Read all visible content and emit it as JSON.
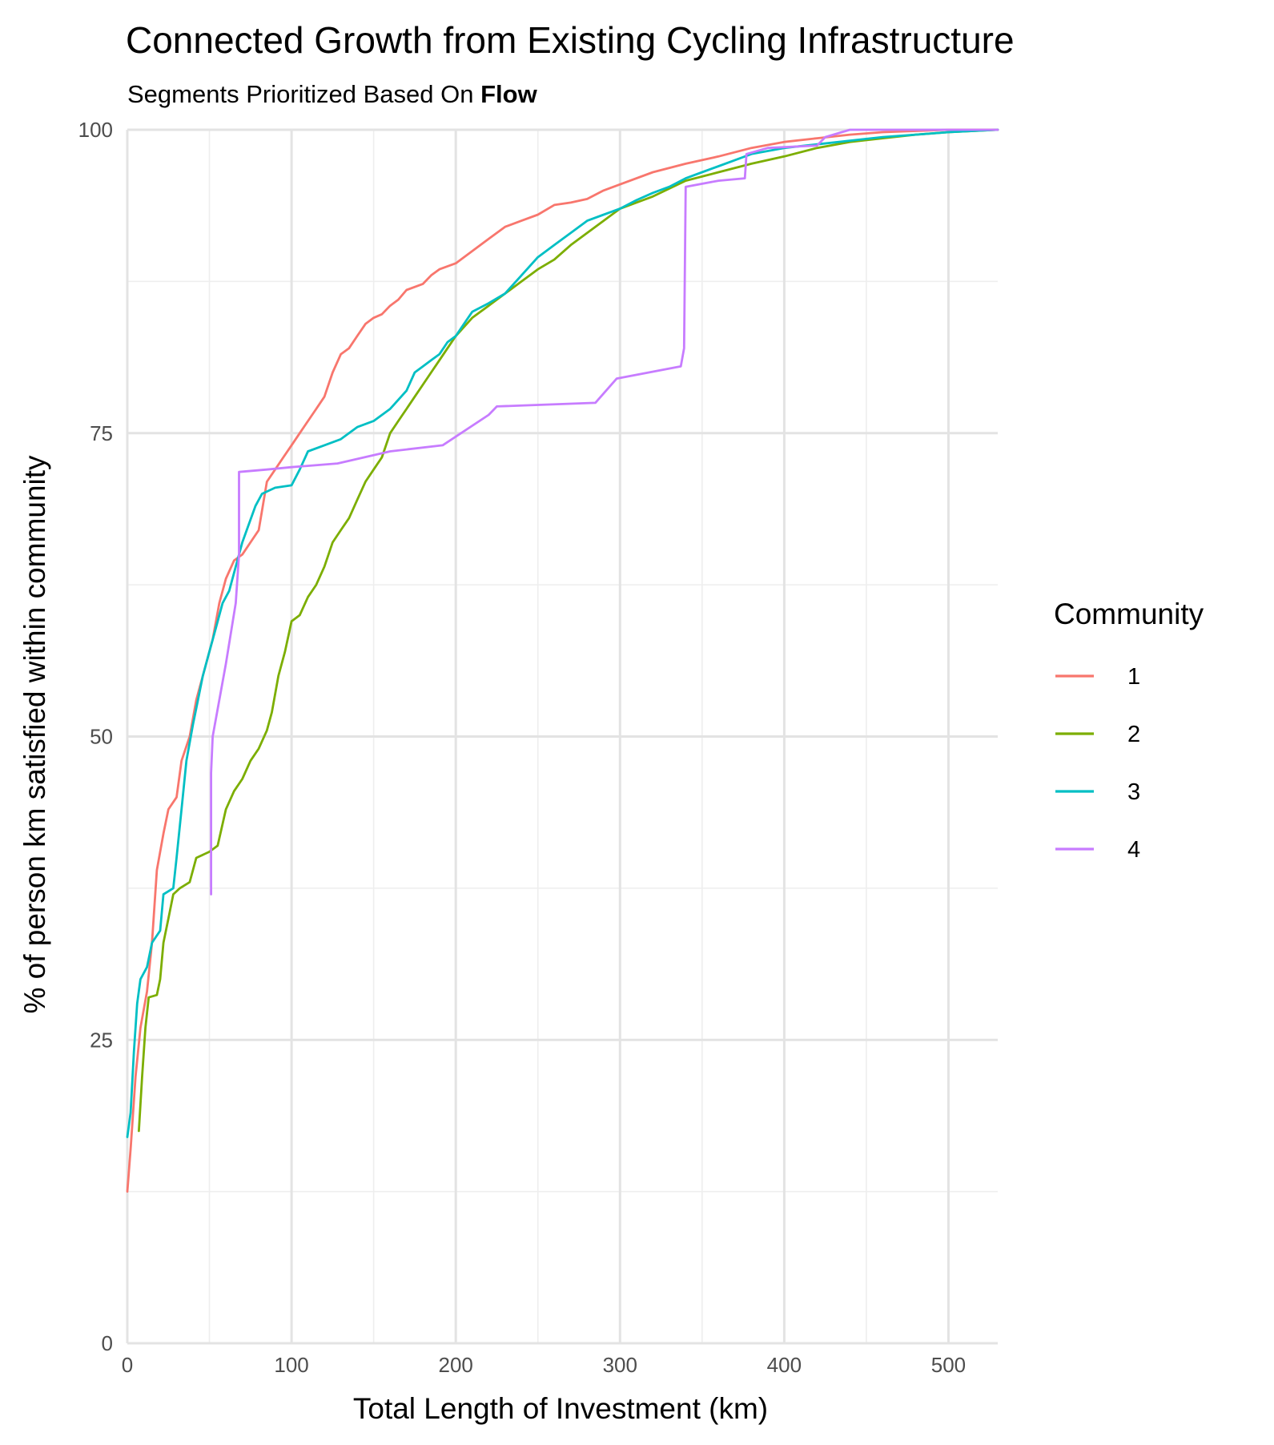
{
  "chart_data": {
    "type": "line",
    "title": "Connected Growth from Existing Cycling Infrastructure",
    "subtitle_prefix": "Segments Prioritized Based On ",
    "subtitle_bold": "Flow",
    "xlabel": "Total Length of Investment (km)",
    "ylabel": "% of person km satisfied within community",
    "xlim": [
      0,
      530
    ],
    "ylim": [
      0,
      100
    ],
    "x_ticks": [
      0,
      100,
      200,
      300,
      400,
      500
    ],
    "y_ticks": [
      0,
      25,
      50,
      75,
      100
    ],
    "x_tick_labels": [
      "0",
      "100",
      "200",
      "300",
      "400",
      "500"
    ],
    "y_tick_labels": [
      "0",
      "25",
      "50",
      "75",
      "100"
    ],
    "grid": true,
    "legend": {
      "title": "Community",
      "position": "right"
    },
    "series": [
      {
        "name": "1",
        "color": "#F8766D",
        "points": [
          [
            0,
            12.5
          ],
          [
            2,
            16
          ],
          [
            5,
            22
          ],
          [
            8,
            26
          ],
          [
            12,
            29
          ],
          [
            15,
            33
          ],
          [
            18,
            39
          ],
          [
            22,
            42
          ],
          [
            25,
            44
          ],
          [
            30,
            45
          ],
          [
            33,
            48
          ],
          [
            38,
            50
          ],
          [
            42,
            53
          ],
          [
            48,
            56
          ],
          [
            52,
            58
          ],
          [
            56,
            61
          ],
          [
            60,
            63
          ],
          [
            65,
            64.5
          ],
          [
            70,
            65
          ],
          [
            75,
            66
          ],
          [
            80,
            67
          ],
          [
            85,
            71
          ],
          [
            90,
            72
          ],
          [
            95,
            73
          ],
          [
            100,
            74
          ],
          [
            105,
            75
          ],
          [
            110,
            76
          ],
          [
            115,
            77
          ],
          [
            120,
            78
          ],
          [
            125,
            80
          ],
          [
            130,
            81.5
          ],
          [
            135,
            82
          ],
          [
            140,
            83
          ],
          [
            145,
            84
          ],
          [
            150,
            84.5
          ],
          [
            155,
            84.8
          ],
          [
            160,
            85.5
          ],
          [
            165,
            86
          ],
          [
            170,
            86.8
          ],
          [
            180,
            87.3
          ],
          [
            185,
            88
          ],
          [
            190,
            88.5
          ],
          [
            200,
            89
          ],
          [
            210,
            90
          ],
          [
            220,
            91
          ],
          [
            230,
            92
          ],
          [
            240,
            92.5
          ],
          [
            250,
            93
          ],
          [
            260,
            93.8
          ],
          [
            270,
            94
          ],
          [
            280,
            94.3
          ],
          [
            290,
            95
          ],
          [
            300,
            95.5
          ],
          [
            320,
            96.5
          ],
          [
            340,
            97.2
          ],
          [
            360,
            97.8
          ],
          [
            380,
            98.5
          ],
          [
            400,
            99
          ],
          [
            420,
            99.3
          ],
          [
            440,
            99.6
          ],
          [
            460,
            99.8
          ],
          [
            480,
            99.9
          ],
          [
            500,
            100
          ],
          [
            530,
            100
          ]
        ]
      },
      {
        "name": "2",
        "color": "#7CAE00",
        "points": [
          [
            7,
            17.5
          ],
          [
            9,
            22
          ],
          [
            11,
            26
          ],
          [
            13,
            28.5
          ],
          [
            18,
            28.7
          ],
          [
            20,
            30
          ],
          [
            22,
            33
          ],
          [
            25,
            35
          ],
          [
            28,
            37
          ],
          [
            32,
            37.5
          ],
          [
            38,
            38
          ],
          [
            42,
            40
          ],
          [
            50,
            40.5
          ],
          [
            55,
            41
          ],
          [
            60,
            44
          ],
          [
            65,
            45.5
          ],
          [
            70,
            46.5
          ],
          [
            75,
            48
          ],
          [
            80,
            49
          ],
          [
            85,
            50.5
          ],
          [
            88,
            52
          ],
          [
            92,
            55
          ],
          [
            96,
            57
          ],
          [
            100,
            59.5
          ],
          [
            105,
            60
          ],
          [
            110,
            61.5
          ],
          [
            115,
            62.5
          ],
          [
            120,
            64
          ],
          [
            125,
            66
          ],
          [
            130,
            67
          ],
          [
            135,
            68
          ],
          [
            140,
            69.5
          ],
          [
            145,
            71
          ],
          [
            150,
            72
          ],
          [
            155,
            73
          ],
          [
            160,
            75
          ],
          [
            165,
            76
          ],
          [
            170,
            77
          ],
          [
            175,
            78
          ],
          [
            180,
            79
          ],
          [
            185,
            80
          ],
          [
            190,
            81
          ],
          [
            195,
            82
          ],
          [
            200,
            83
          ],
          [
            210,
            84.5
          ],
          [
            220,
            85.5
          ],
          [
            230,
            86.5
          ],
          [
            240,
            87.5
          ],
          [
            250,
            88.5
          ],
          [
            260,
            89.3
          ],
          [
            270,
            90.5
          ],
          [
            280,
            91.5
          ],
          [
            290,
            92.5
          ],
          [
            300,
            93.5
          ],
          [
            320,
            94.5
          ],
          [
            340,
            95.8
          ],
          [
            360,
            96.5
          ],
          [
            380,
            97.2
          ],
          [
            400,
            97.8
          ],
          [
            420,
            98.5
          ],
          [
            440,
            99
          ],
          [
            460,
            99.3
          ],
          [
            480,
            99.6
          ],
          [
            500,
            99.8
          ],
          [
            530,
            100
          ]
        ]
      },
      {
        "name": "3",
        "color": "#00BFC4",
        "points": [
          [
            0,
            17
          ],
          [
            2,
            19
          ],
          [
            4,
            24
          ],
          [
            6,
            28
          ],
          [
            8,
            30
          ],
          [
            12,
            31
          ],
          [
            15,
            33
          ],
          [
            20,
            34
          ],
          [
            22,
            37
          ],
          [
            28,
            37.5
          ],
          [
            30,
            40
          ],
          [
            33,
            44
          ],
          [
            36,
            48
          ],
          [
            40,
            51
          ],
          [
            43,
            53
          ],
          [
            46,
            55
          ],
          [
            50,
            57
          ],
          [
            54,
            59
          ],
          [
            58,
            61
          ],
          [
            62,
            62
          ],
          [
            66,
            64
          ],
          [
            70,
            66
          ],
          [
            74,
            67.5
          ],
          [
            78,
            69
          ],
          [
            82,
            70
          ],
          [
            90,
            70.5
          ],
          [
            100,
            70.7
          ],
          [
            105,
            72
          ],
          [
            110,
            73.5
          ],
          [
            120,
            74
          ],
          [
            130,
            74.5
          ],
          [
            140,
            75.5
          ],
          [
            150,
            76
          ],
          [
            160,
            77
          ],
          [
            170,
            78.5
          ],
          [
            175,
            80
          ],
          [
            180,
            80.5
          ],
          [
            185,
            81
          ],
          [
            190,
            81.5
          ],
          [
            195,
            82.5
          ],
          [
            200,
            83
          ],
          [
            205,
            84
          ],
          [
            210,
            85
          ],
          [
            220,
            85.7
          ],
          [
            230,
            86.5
          ],
          [
            240,
            88
          ],
          [
            250,
            89.5
          ],
          [
            260,
            90.5
          ],
          [
            270,
            91.5
          ],
          [
            280,
            92.5
          ],
          [
            290,
            93
          ],
          [
            300,
            93.5
          ],
          [
            310,
            94.2
          ],
          [
            320,
            94.8
          ],
          [
            330,
            95.3
          ],
          [
            340,
            96
          ],
          [
            350,
            96.5
          ],
          [
            360,
            97
          ],
          [
            370,
            97.5
          ],
          [
            380,
            98
          ],
          [
            400,
            98.5
          ],
          [
            420,
            98.8
          ],
          [
            440,
            99.1
          ],
          [
            460,
            99.4
          ],
          [
            480,
            99.6
          ],
          [
            500,
            99.8
          ],
          [
            530,
            100
          ]
        ]
      },
      {
        "name": "4",
        "color": "#C77CFF",
        "points": [
          [
            51,
            37
          ],
          [
            51,
            47
          ],
          [
            52,
            50
          ],
          [
            60,
            56
          ],
          [
            66,
            61
          ],
          [
            68,
            65
          ],
          [
            68,
            71.8
          ],
          [
            85,
            72
          ],
          [
            100,
            72.2
          ],
          [
            128,
            72.5
          ],
          [
            160,
            73.5
          ],
          [
            192,
            74
          ],
          [
            220,
            76.5
          ],
          [
            225,
            77.2
          ],
          [
            285,
            77.5
          ],
          [
            298,
            79.5
          ],
          [
            337,
            80.5
          ],
          [
            339,
            82
          ],
          [
            340,
            95.3
          ],
          [
            360,
            95.8
          ],
          [
            376,
            96
          ],
          [
            377,
            98
          ],
          [
            390,
            98.5
          ],
          [
            420,
            98.7
          ],
          [
            425,
            99.4
          ],
          [
            440,
            100
          ],
          [
            530,
            100
          ]
        ]
      }
    ]
  }
}
